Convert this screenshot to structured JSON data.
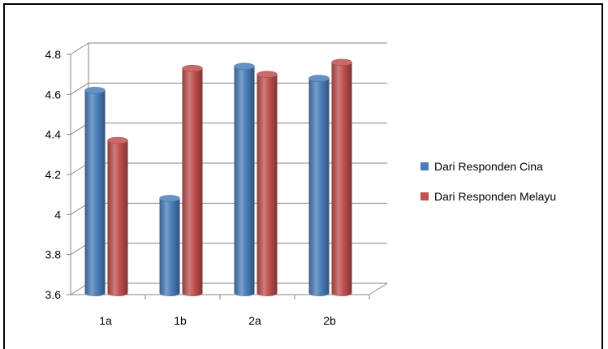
{
  "chart_data": {
    "type": "bar",
    "style": "3d-cylinder",
    "categories": [
      "1a",
      "1b",
      "2a",
      "2b"
    ],
    "series": [
      {
        "name": "Dari Responden Cina",
        "color": "#4a7ebb",
        "values": [
          4.62,
          4.08,
          4.74,
          4.68
        ]
      },
      {
        "name": "Dari Responden Melayu",
        "color": "#c0504d",
        "values": [
          4.37,
          4.73,
          4.7,
          4.76
        ]
      }
    ],
    "ylim": [
      3.6,
      4.8
    ],
    "yticks": [
      "4.8",
      "4.6",
      "4.4",
      "4.2",
      "4",
      "3.8",
      "3.6"
    ],
    "grid": true,
    "legend_position": "right"
  }
}
